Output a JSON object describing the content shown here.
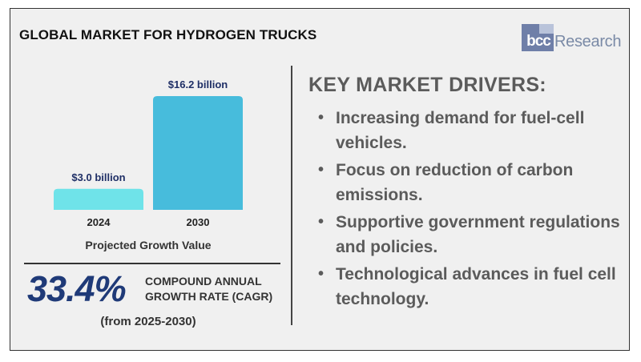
{
  "title": "GLOBAL MARKET FOR HYDROGEN TRUCKS",
  "logo": {
    "mark": "bcc",
    "word": "Research"
  },
  "chart_data": {
    "type": "bar",
    "categories": [
      "2024",
      "2030"
    ],
    "values": [
      3.0,
      16.2
    ],
    "value_labels": [
      "$3.0 billion",
      "$16.2 billion"
    ],
    "unit": "billion USD",
    "caption": "Projected Growth Value",
    "colors": [
      "#6fe3e9",
      "#47bcdc"
    ]
  },
  "cagr": {
    "value": "33.4%",
    "label_line1": "COMPOUND ANNUAL",
    "label_line2": "GROWTH RATE (CAGR)",
    "period": "(from 2025-2030)"
  },
  "drivers": {
    "title": "KEY MARKET DRIVERS:",
    "items": [
      "Increasing demand for fuel-cell vehicles.",
      "Focus on reduction of carbon emissions.",
      "Supportive government regulations and policies.",
      "Technological advances in fuel cell technology."
    ]
  }
}
